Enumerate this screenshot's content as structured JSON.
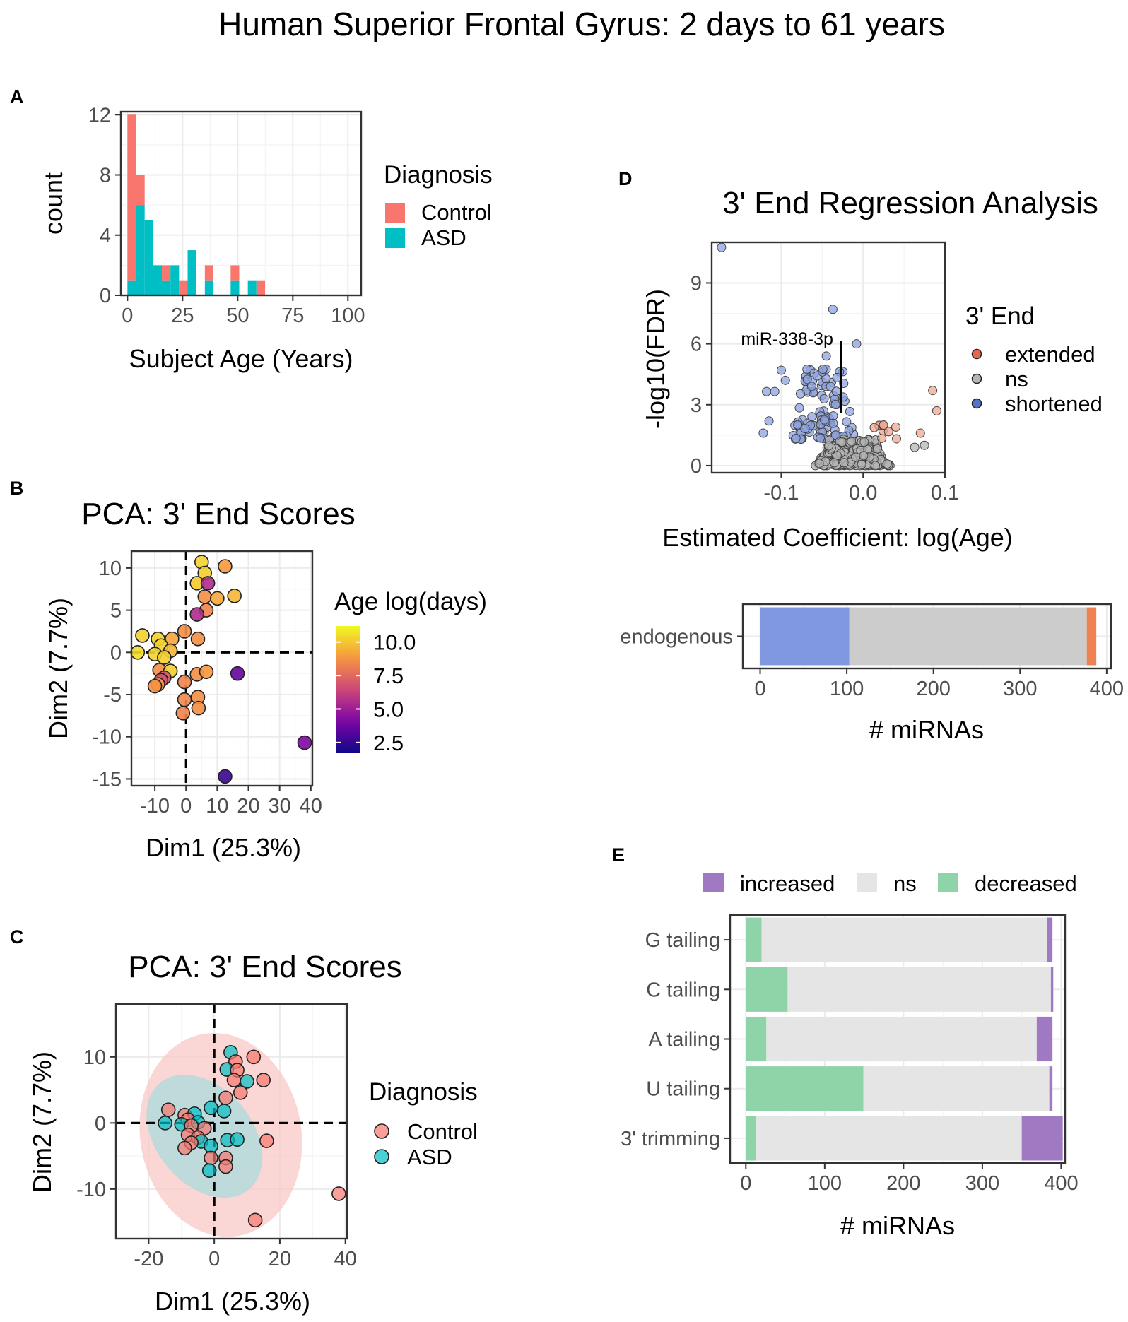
{
  "figure": {
    "title": "Human Superior Frontal Gyrus: 2 days to 61 years"
  },
  "chart_data": [
    {
      "panel": "A",
      "type": "bar",
      "subtype": "stacked-histogram",
      "title": "",
      "xlabel": "Subject Age (Years)",
      "ylabel": "count",
      "xlim": [
        -3,
        106
      ],
      "ylim": [
        0,
        12.2
      ],
      "x_ticks": [
        0,
        25,
        50,
        75,
        100
      ],
      "y_ticks": [
        0,
        4,
        8,
        12
      ],
      "bin_width": 3.9,
      "legend": {
        "title": "Diagnosis",
        "position": "right",
        "entries": [
          "Control",
          "ASD"
        ]
      },
      "colors": {
        "Control": "#F8766D",
        "ASD": "#00BFC4"
      },
      "bins": [
        {
          "start": 0.0,
          "ASD": 1,
          "Control": 11
        },
        {
          "start": 3.9,
          "ASD": 6,
          "Control": 2
        },
        {
          "start": 7.8,
          "ASD": 5,
          "Control": 0
        },
        {
          "start": 11.7,
          "ASD": 2,
          "Control": 0
        },
        {
          "start": 15.6,
          "ASD": 1,
          "Control": 1
        },
        {
          "start": 19.5,
          "ASD": 2,
          "Control": 0
        },
        {
          "start": 23.4,
          "ASD": 0,
          "Control": 1
        },
        {
          "start": 27.3,
          "ASD": 3,
          "Control": 0
        },
        {
          "start": 35.1,
          "ASD": 1,
          "Control": 1
        },
        {
          "start": 46.8,
          "ASD": 1,
          "Control": 1
        },
        {
          "start": 54.6,
          "ASD": 1,
          "Control": 0
        },
        {
          "start": 58.5,
          "ASD": 0,
          "Control": 1
        }
      ]
    },
    {
      "panel": "B",
      "type": "scatter",
      "title": "PCA: 3' End Scores",
      "xlabel": "Dim1 (25.3%)",
      "ylabel": "Dim2 (7.7%)",
      "xlim": [
        -17.5,
        40.5
      ],
      "ylim": [
        -15.8,
        12
      ],
      "x_ticks": [
        -10,
        0,
        10,
        20,
        30,
        40
      ],
      "y_ticks": [
        -15,
        -10,
        -5,
        0,
        5,
        10
      ],
      "colorbar": {
        "title": "Age log(days)",
        "ticks": [
          "10.0",
          "7.5",
          "5.0",
          "2.5"
        ],
        "tick_values": [
          10.0,
          7.5,
          5.0,
          2.5
        ],
        "range": [
          1.7,
          11.2
        ],
        "position": "right"
      },
      "points": [
        {
          "x": 5,
          "y": 10.7,
          "age": 10.3
        },
        {
          "x": 12.5,
          "y": 10.2,
          "age": 8.9
        },
        {
          "x": 6,
          "y": 9.4,
          "age": 10.2
        },
        {
          "x": 3.5,
          "y": 8.2,
          "age": 10.1
        },
        {
          "x": 7,
          "y": 8.2,
          "age": 5.5
        },
        {
          "x": 6,
          "y": 6.6,
          "age": 8.6
        },
        {
          "x": 10,
          "y": 6.4,
          "age": 9.3
        },
        {
          "x": 15.5,
          "y": 6.7,
          "age": 9.6
        },
        {
          "x": 6.5,
          "y": 5.0,
          "age": 8.3
        },
        {
          "x": 3.5,
          "y": 4.5,
          "age": 5.5
        },
        {
          "x": -14,
          "y": 2.0,
          "age": 10.2
        },
        {
          "x": -9,
          "y": 1.6,
          "age": 10.2
        },
        {
          "x": -4.5,
          "y": 1.6,
          "age": 9.2
        },
        {
          "x": -0.5,
          "y": 2.5,
          "age": 8.6
        },
        {
          "x": -8,
          "y": 0.8,
          "age": 10.3
        },
        {
          "x": -5,
          "y": 0.2,
          "age": 9.6
        },
        {
          "x": 3.8,
          "y": 1.6,
          "age": 8.6
        },
        {
          "x": -15.5,
          "y": 0.0,
          "age": 10.5
        },
        {
          "x": -10,
          "y": -0.2,
          "age": 10.3
        },
        {
          "x": -7,
          "y": -0.6,
          "age": 10.2
        },
        {
          "x": -8.5,
          "y": -2.1,
          "age": 8.6
        },
        {
          "x": -5,
          "y": -2.2,
          "age": 10.2
        },
        {
          "x": -7,
          "y": -3.0,
          "age": 7.0
        },
        {
          "x": -8,
          "y": -3.3,
          "age": 6.8
        },
        {
          "x": -9,
          "y": -3.8,
          "age": 8.9
        },
        {
          "x": -10,
          "y": -4.0,
          "age": 8.7
        },
        {
          "x": 3.5,
          "y": -2.6,
          "age": 8.6
        },
        {
          "x": 6.5,
          "y": -2.3,
          "age": 8.9
        },
        {
          "x": 16.5,
          "y": -2.5,
          "age": 3.6
        },
        {
          "x": -0.5,
          "y": -3.5,
          "age": 8.3
        },
        {
          "x": -0.5,
          "y": -5.6,
          "age": 8.4
        },
        {
          "x": 3.8,
          "y": -5.3,
          "age": 8.6
        },
        {
          "x": 4,
          "y": -6.6,
          "age": 8.6
        },
        {
          "x": -1,
          "y": -7.2,
          "age": 8.3
        },
        {
          "x": 38,
          "y": -10.7,
          "age": 4.2
        },
        {
          "x": 12.5,
          "y": -14.7,
          "age": 2.6
        }
      ]
    },
    {
      "panel": "C",
      "type": "scatter",
      "title": "PCA: 3' End Scores",
      "xlabel": "Dim1 (25.3%)",
      "ylabel": "Dim2 (7.7%)",
      "xlim": [
        -30,
        40.5
      ],
      "ylim": [
        -17.5,
        18
      ],
      "x_ticks": [
        -20,
        0,
        20,
        40
      ],
      "y_ticks": [
        -10,
        0,
        10
      ],
      "legend": {
        "title": "Diagnosis",
        "position": "right",
        "entries": [
          "Control",
          "ASD"
        ]
      },
      "colors": {
        "Control": "#F8766D",
        "ASD": "#00BFC4"
      },
      "ellipses": [
        {
          "group": "Control",
          "cx": 2,
          "cy": -1.8,
          "rx": 29,
          "ry": 15.5,
          "angle_deg": -10
        },
        {
          "group": "ASD",
          "cx": -3,
          "cy": -2,
          "rx": 11,
          "ry": 10.5,
          "angle_deg": -40
        }
      ],
      "points": [
        {
          "x": 5,
          "y": 10.7,
          "group": "ASD"
        },
        {
          "x": 12,
          "y": 10,
          "group": "Control"
        },
        {
          "x": 6.5,
          "y": 9.3,
          "group": "Control"
        },
        {
          "x": 3.8,
          "y": 8.1,
          "group": "ASD"
        },
        {
          "x": 7,
          "y": 8.0,
          "group": "Control"
        },
        {
          "x": 6,
          "y": 6.5,
          "group": "Control"
        },
        {
          "x": 10,
          "y": 6.3,
          "group": "ASD"
        },
        {
          "x": 15,
          "y": 6.5,
          "group": "Control"
        },
        {
          "x": 8,
          "y": 4.6,
          "group": "Control"
        },
        {
          "x": 3.5,
          "y": 3.8,
          "group": "Control"
        },
        {
          "x": -14,
          "y": 2.0,
          "group": "Control"
        },
        {
          "x": -9,
          "y": 1.2,
          "group": "Control"
        },
        {
          "x": -6,
          "y": 1.4,
          "group": "ASD"
        },
        {
          "x": -1,
          "y": 2.3,
          "group": "ASD"
        },
        {
          "x": -8,
          "y": 0.5,
          "group": "Control"
        },
        {
          "x": -5,
          "y": 0.1,
          "group": "ASD"
        },
        {
          "x": 3,
          "y": 1.8,
          "group": "ASD"
        },
        {
          "x": -15,
          "y": 0.0,
          "group": "ASD"
        },
        {
          "x": -10,
          "y": -0.2,
          "group": "ASD"
        },
        {
          "x": -7,
          "y": -0.4,
          "group": "Control"
        },
        {
          "x": -3,
          "y": -0.8,
          "group": "Control"
        },
        {
          "x": -8,
          "y": -1.8,
          "group": "Control"
        },
        {
          "x": -5,
          "y": -2.2,
          "group": "Control"
        },
        {
          "x": -4,
          "y": -2.8,
          "group": "ASD"
        },
        {
          "x": -7,
          "y": -3.0,
          "group": "Control"
        },
        {
          "x": -9,
          "y": -3.8,
          "group": "Control"
        },
        {
          "x": 4,
          "y": -2.6,
          "group": "ASD"
        },
        {
          "x": 7,
          "y": -2.5,
          "group": "ASD"
        },
        {
          "x": 16,
          "y": -2.7,
          "group": "Control"
        },
        {
          "x": -1,
          "y": -3.5,
          "group": "ASD"
        },
        {
          "x": -1,
          "y": -5.3,
          "group": "Control"
        },
        {
          "x": 3.5,
          "y": -5.3,
          "group": "Control"
        },
        {
          "x": 3.5,
          "y": -6.6,
          "group": "Control"
        },
        {
          "x": -1.5,
          "y": -7.2,
          "group": "ASD"
        },
        {
          "x": 38,
          "y": -10.7,
          "group": "Control"
        },
        {
          "x": 12.5,
          "y": -14.7,
          "group": "Control"
        }
      ]
    },
    {
      "panel": "D",
      "type": "scatter",
      "subtype": "volcano",
      "title": "3' End Regression Analysis",
      "xlabel": "Estimated Coefficient: log(Age)",
      "ylabel": "-log10(FDR)",
      "xlim": [
        -0.185,
        0.1
      ],
      "ylim": [
        -0.35,
        11.0
      ],
      "x_ticks": [
        -0.1,
        0.0,
        0.1
      ],
      "x_tick_labels": [
        "-0.1",
        "0.0",
        "0.1"
      ],
      "y_ticks": [
        0,
        3,
        6,
        9
      ],
      "legend": {
        "title": "3' End",
        "position": "right",
        "entries": [
          "extended",
          "ns",
          "shortened"
        ]
      },
      "colors": {
        "extended": "#E7654A",
        "ns": "#8A8A8A",
        "shortened": "#5572C9"
      },
      "annotation": {
        "label": "miR-338-3p",
        "x": -0.027,
        "y": 2.6
      },
      "highlighted_points": [
        {
          "x": -0.173,
          "y": 10.75,
          "group": "shortened"
        },
        {
          "x": -0.037,
          "y": 7.7,
          "group": "shortened"
        },
        {
          "x": -0.008,
          "y": 6.0,
          "group": "shortened"
        },
        {
          "x": -0.045,
          "y": 5.4,
          "group": "shortened"
        },
        {
          "x": -0.1,
          "y": 4.7,
          "group": "shortened"
        },
        {
          "x": -0.095,
          "y": 4.2,
          "group": "shortened"
        },
        {
          "x": -0.118,
          "y": 3.65,
          "group": "shortened"
        },
        {
          "x": -0.108,
          "y": 3.65,
          "group": "shortened"
        },
        {
          "x": -0.122,
          "y": 1.6,
          "group": "shortened"
        },
        {
          "x": -0.115,
          "y": 2.2,
          "group": "shortened"
        },
        {
          "x": 0.085,
          "y": 3.7,
          "group": "extended"
        },
        {
          "x": 0.09,
          "y": 2.7,
          "group": "extended"
        },
        {
          "x": 0.07,
          "y": 1.6,
          "group": "extended"
        },
        {
          "x": 0.04,
          "y": 1.9,
          "group": "extended"
        },
        {
          "x": 0.025,
          "y": 2.0,
          "group": "extended"
        },
        {
          "x": 0.075,
          "y": 1.0,
          "group": "ns"
        },
        {
          "x": 0.063,
          "y": 0.9,
          "group": "ns"
        }
      ],
      "clusters": [
        {
          "group": "shortened",
          "count": 100,
          "x_range": [
            -0.09,
            -0.005
          ],
          "y_range": [
            1.3,
            4.8
          ]
        },
        {
          "group": "ns",
          "count": 270,
          "x_range": [
            -0.06,
            0.035
          ],
          "y_range": [
            0.0,
            1.3
          ]
        },
        {
          "group": "extended",
          "count": 8,
          "x_range": [
            0.005,
            0.045
          ],
          "y_range": [
            1.3,
            2.0
          ]
        }
      ]
    },
    {
      "panel": "D",
      "type": "bar",
      "subtype": "horizontal-stacked",
      "title": "",
      "xlabel": "# miRNAs",
      "ylabel": "",
      "xlim": [
        -20,
        405
      ],
      "x_ticks": [
        0,
        100,
        200,
        300,
        400
      ],
      "categories": [
        "endogenous"
      ],
      "colors": {
        "shortened": "#7F98DF",
        "ns": "#CCCCCC",
        "extended": "#EE8253"
      },
      "series": [
        {
          "name": "shortened",
          "values": [
            103
          ]
        },
        {
          "name": "ns",
          "values": [
            274
          ]
        },
        {
          "name": "extended",
          "values": [
            11
          ]
        }
      ]
    },
    {
      "panel": "E",
      "type": "bar",
      "subtype": "horizontal-stacked",
      "title": "",
      "xlabel": "# miRNAs",
      "ylabel": "",
      "xlim": [
        -20,
        405
      ],
      "x_ticks": [
        0,
        100,
        200,
        300,
        400
      ],
      "categories": [
        "G tailing",
        "C tailing",
        "A tailing",
        "U tailing",
        "3' trimming"
      ],
      "legend": {
        "position": "top",
        "entries": [
          "increased",
          "ns",
          "decreased"
        ]
      },
      "colors": {
        "increased": "#9F79C2",
        "ns": "#E5E5E5",
        "decreased": "#8ED4A8"
      },
      "series": [
        {
          "name": "decreased",
          "values": [
            20,
            53,
            26,
            149,
            13
          ]
        },
        {
          "name": "ns",
          "values": [
            362,
            334,
            343,
            236,
            337
          ]
        },
        {
          "name": "increased",
          "values": [
            7,
            3,
            20,
            4,
            52
          ]
        }
      ]
    }
  ],
  "labels": {
    "panel_a": "A",
    "panel_b": "B",
    "panel_c": "C",
    "panel_d": "D",
    "panel_e": "E"
  }
}
